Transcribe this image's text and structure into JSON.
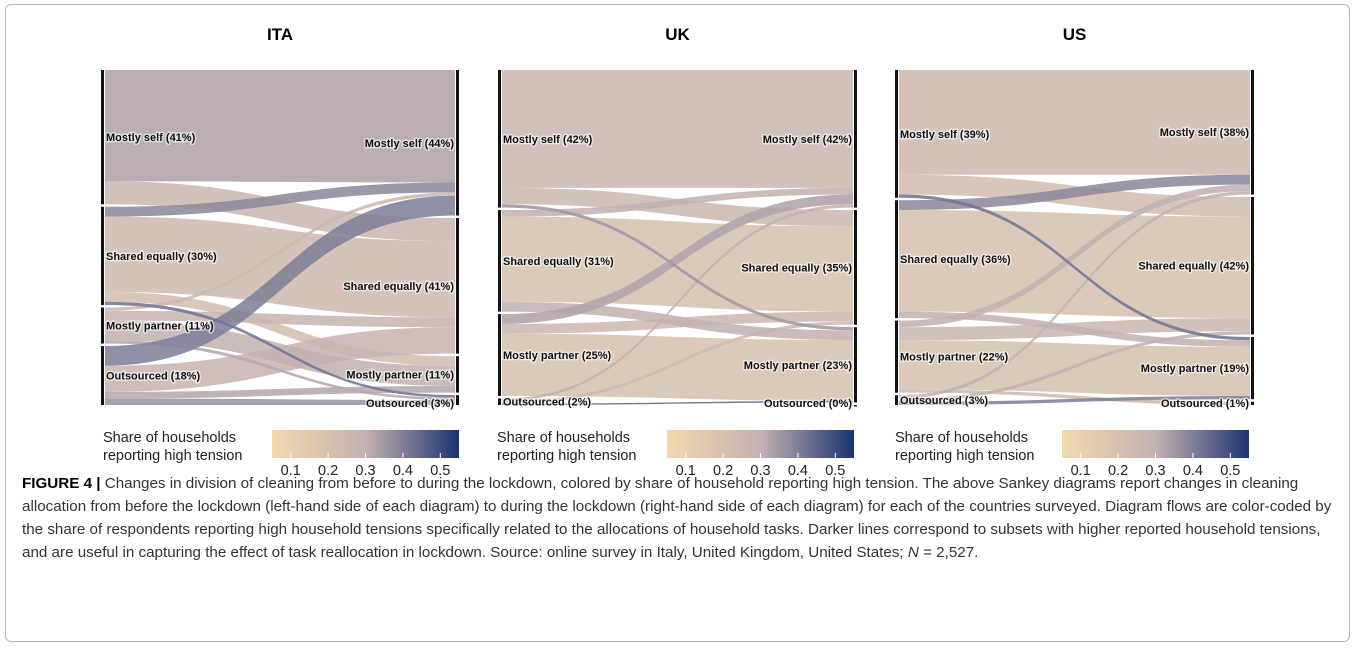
{
  "figure": {
    "caption_lead": "FIGURE 4 |",
    "caption_text": " Changes in division of cleaning from before to during the lockdown, colored by share of household reporting high tension. The above Sankey diagrams report changes in cleaning allocation from before the lockdown (left-hand side of each diagram) to during the lockdown (right-hand side of each diagram) for each of the countries surveyed. Diagram flows are color-coded by the share of respondents reporting high household tensions specifically related to the allocations of household tasks. Darker lines correspond to subsets with higher reported household tensions, and are useful in capturing the effect of task reallocation in lockdown. Source: online survey in Italy, United Kingdom, United States; ",
    "caption_n_var": "N",
    "caption_n_value": " = 2,527."
  },
  "colors": {
    "scale_low": "#f2d9ab",
    "scale_mid": "#c4b2b2",
    "scale_high": "#1b3370"
  },
  "chart_data": [
    {
      "type": "sankey",
      "title": "ITA",
      "left_nodes": [
        {
          "label": "Mostly self (41%)",
          "value": 41
        },
        {
          "label": "Shared equally (30%)",
          "value": 30
        },
        {
          "label": "Mostly partner (11%)",
          "value": 11
        },
        {
          "label": "Outsourced (18%)",
          "value": 18
        }
      ],
      "right_nodes": [
        {
          "label": "Mostly self (44%)",
          "value": 44
        },
        {
          "label": "Shared equally (41%)",
          "value": 41
        },
        {
          "label": "Mostly partner (11%)",
          "value": 11
        },
        {
          "label": "Outsourced (3%)",
          "value": 3
        }
      ],
      "flows": [
        {
          "from": 0,
          "to": 0,
          "value": 34,
          "tension": 0.33
        },
        {
          "from": 0,
          "to": 1,
          "value": 7,
          "tension": 0.26
        },
        {
          "from": 1,
          "to": 0,
          "value": 3,
          "tension": 0.38
        },
        {
          "from": 1,
          "to": 1,
          "value": 23,
          "tension": 0.24
        },
        {
          "from": 1,
          "to": 2,
          "value": 3,
          "tension": 0.22
        },
        {
          "from": 1,
          "to": 3,
          "value": 1,
          "tension": 0.42
        },
        {
          "from": 2,
          "to": 0,
          "value": 1,
          "tension": 0.25
        },
        {
          "from": 2,
          "to": 1,
          "value": 3,
          "tension": 0.28
        },
        {
          "from": 2,
          "to": 2,
          "value": 6,
          "tension": 0.3
        },
        {
          "from": 2,
          "to": 3,
          "value": 1,
          "tension": 0.32
        },
        {
          "from": 3,
          "to": 0,
          "value": 6,
          "tension": 0.4
        },
        {
          "from": 3,
          "to": 1,
          "value": 8,
          "tension": 0.28
        },
        {
          "from": 3,
          "to": 2,
          "value": 2,
          "tension": 0.32
        },
        {
          "from": 3,
          "to": 3,
          "value": 2,
          "tension": 0.36
        }
      ],
      "colorbar": {
        "label_line1": "Share of households",
        "label_line2": "reporting high tension",
        "ticks": [
          "0.1",
          "0.2",
          "0.3",
          "0.4",
          "0.5"
        ],
        "range": [
          0.05,
          0.55
        ]
      }
    },
    {
      "type": "sankey",
      "title": "UK",
      "left_nodes": [
        {
          "label": "Mostly self (42%)",
          "value": 42
        },
        {
          "label": "Shared equally (31%)",
          "value": 31
        },
        {
          "label": "Mostly partner (25%)",
          "value": 25
        },
        {
          "label": "Outsourced (2%)",
          "value": 2
        }
      ],
      "right_nodes": [
        {
          "label": "Mostly self (42%)",
          "value": 42
        },
        {
          "label": "Shared equally (35%)",
          "value": 35
        },
        {
          "label": "Mostly partner (23%)",
          "value": 23
        },
        {
          "label": "Outsourced (0%)",
          "value": 0
        }
      ],
      "flows": [
        {
          "from": 0,
          "to": 0,
          "value": 36,
          "tension": 0.26
        },
        {
          "from": 0,
          "to": 1,
          "value": 5,
          "tension": 0.25
        },
        {
          "from": 0,
          "to": 2,
          "value": 1,
          "tension": 0.35
        },
        {
          "from": 1,
          "to": 0,
          "value": 2,
          "tension": 0.3
        },
        {
          "from": 1,
          "to": 1,
          "value": 26,
          "tension": 0.2
        },
        {
          "from": 1,
          "to": 2,
          "value": 3,
          "tension": 0.3
        },
        {
          "from": 2,
          "to": 0,
          "value": 3,
          "tension": 0.33
        },
        {
          "from": 2,
          "to": 1,
          "value": 3,
          "tension": 0.25
        },
        {
          "from": 2,
          "to": 2,
          "value": 19,
          "tension": 0.2
        },
        {
          "from": 3,
          "to": 0,
          "value": 1,
          "tension": 0.3
        },
        {
          "from": 3,
          "to": 1,
          "value": 1,
          "tension": 0.25
        },
        {
          "from": 3,
          "to": 2,
          "value": 0.5,
          "tension": 0.45
        }
      ],
      "colorbar": {
        "label_line1": "Share of households",
        "label_line2": "reporting high tension",
        "ticks": [
          "0.1",
          "0.2",
          "0.3",
          "0.4",
          "0.5"
        ],
        "range": [
          0.05,
          0.55
        ]
      }
    },
    {
      "type": "sankey",
      "title": "US",
      "left_nodes": [
        {
          "label": "Mostly self (39%)",
          "value": 39
        },
        {
          "label": "Shared equally (36%)",
          "value": 36
        },
        {
          "label": "Mostly partner (22%)",
          "value": 22
        },
        {
          "label": "Outsourced (3%)",
          "value": 3
        }
      ],
      "right_nodes": [
        {
          "label": "Mostly self (38%)",
          "value": 38
        },
        {
          "label": "Shared equally (42%)",
          "value": 42
        },
        {
          "label": "Mostly partner (19%)",
          "value": 19
        },
        {
          "label": "Outsourced (1%)",
          "value": 1
        }
      ],
      "flows": [
        {
          "from": 0,
          "to": 0,
          "value": 32,
          "tension": 0.24
        },
        {
          "from": 0,
          "to": 1,
          "value": 6,
          "tension": 0.22
        },
        {
          "from": 0,
          "to": 2,
          "value": 1,
          "tension": 0.42
        },
        {
          "from": 1,
          "to": 0,
          "value": 3,
          "tension": 0.38
        },
        {
          "from": 1,
          "to": 1,
          "value": 31,
          "tension": 0.2
        },
        {
          "from": 1,
          "to": 2,
          "value": 2,
          "tension": 0.3
        },
        {
          "from": 2,
          "to": 0,
          "value": 2,
          "tension": 0.3
        },
        {
          "from": 2,
          "to": 1,
          "value": 4,
          "tension": 0.26
        },
        {
          "from": 2,
          "to": 2,
          "value": 15,
          "tension": 0.2
        },
        {
          "from": 2,
          "to": 3,
          "value": 1,
          "tension": 0.25
        },
        {
          "from": 3,
          "to": 0,
          "value": 1,
          "tension": 0.3
        },
        {
          "from": 3,
          "to": 1,
          "value": 1,
          "tension": 0.3
        },
        {
          "from": 3,
          "to": 2,
          "value": 1,
          "tension": 0.4
        }
      ],
      "colorbar": {
        "label_line1": "Share of households",
        "label_line2": "reporting high tension",
        "ticks": [
          "0.1",
          "0.2",
          "0.3",
          "0.4",
          "0.5"
        ],
        "range": [
          0.05,
          0.55
        ]
      }
    }
  ]
}
